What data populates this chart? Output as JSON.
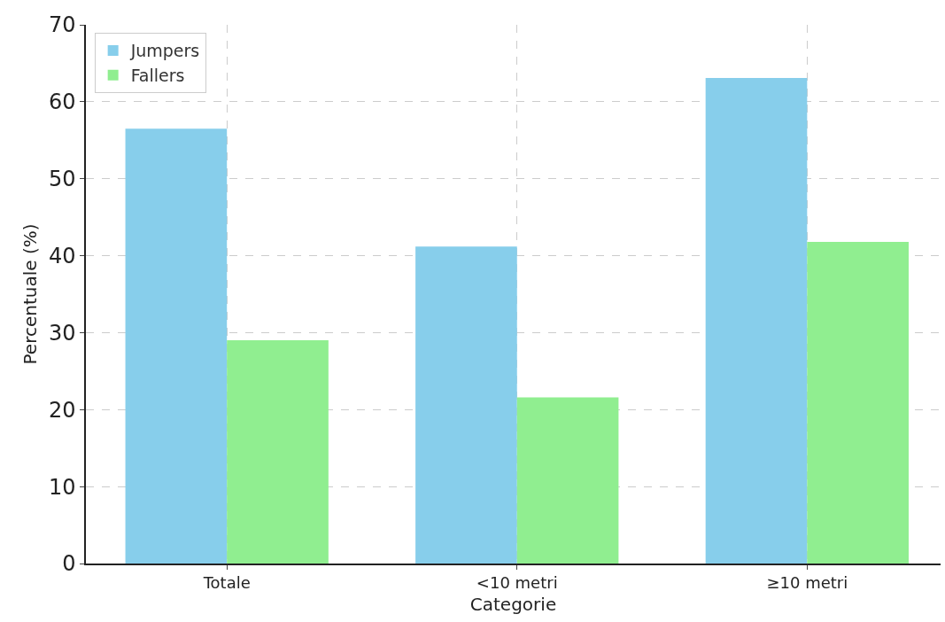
{
  "chart_data": {
    "type": "bar",
    "xlabel": "Categorie",
    "ylabel": "Percentuale (%)",
    "categories": [
      "Totale",
      "<10 metri",
      "≥10 metri"
    ],
    "series": [
      {
        "name": "Jumpers",
        "color": "#87ceeb",
        "values": [
          56.5,
          41.2,
          63.1
        ]
      },
      {
        "name": "Fallers",
        "color": "#90ee90",
        "values": [
          29.0,
          21.6,
          41.8
        ]
      }
    ],
    "ylim": [
      0,
      70
    ],
    "yticks": [
      0,
      10,
      20,
      30,
      40,
      50,
      60,
      70
    ],
    "grid": true,
    "legend": "top left"
  }
}
